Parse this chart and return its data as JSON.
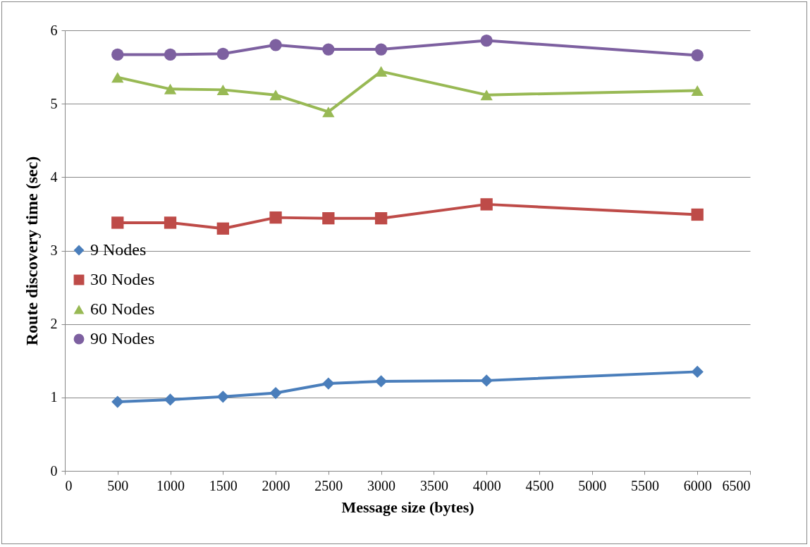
{
  "chart_data": {
    "type": "line",
    "xlabel": "Message size (bytes)",
    "ylabel": "Route discovery time (sec)",
    "x": [
      500,
      1000,
      1500,
      2000,
      2500,
      3000,
      4000,
      6000
    ],
    "xlim": [
      0,
      6500
    ],
    "xticks": [
      0,
      500,
      1000,
      1500,
      2000,
      2500,
      3000,
      3500,
      4000,
      4500,
      5000,
      5500,
      6000,
      6500
    ],
    "ylim": [
      0,
      6
    ],
    "yticks": [
      0,
      1,
      2,
      3,
      4,
      5,
      6
    ],
    "grid": "y",
    "legend": "left",
    "series": [
      {
        "name": "9 Nodes",
        "color": "#4a7ebb",
        "marker": "diamond",
        "values": [
          0.94,
          0.97,
          1.01,
          1.06,
          1.19,
          1.22,
          1.23,
          1.35
        ]
      },
      {
        "name": "30 Nodes",
        "color": "#be4b48",
        "marker": "square",
        "values": [
          3.38,
          3.38,
          3.3,
          3.45,
          3.44,
          3.44,
          3.63,
          3.49
        ]
      },
      {
        "name": "60 Nodes",
        "color": "#98b954",
        "marker": "triangle",
        "values": [
          5.36,
          5.2,
          5.19,
          5.12,
          4.89,
          5.44,
          5.12,
          5.18
        ]
      },
      {
        "name": "90 Nodes",
        "color": "#7d60a0",
        "marker": "circle",
        "values": [
          5.67,
          5.67,
          5.68,
          5.8,
          5.74,
          5.74,
          5.86,
          5.66
        ]
      }
    ]
  }
}
